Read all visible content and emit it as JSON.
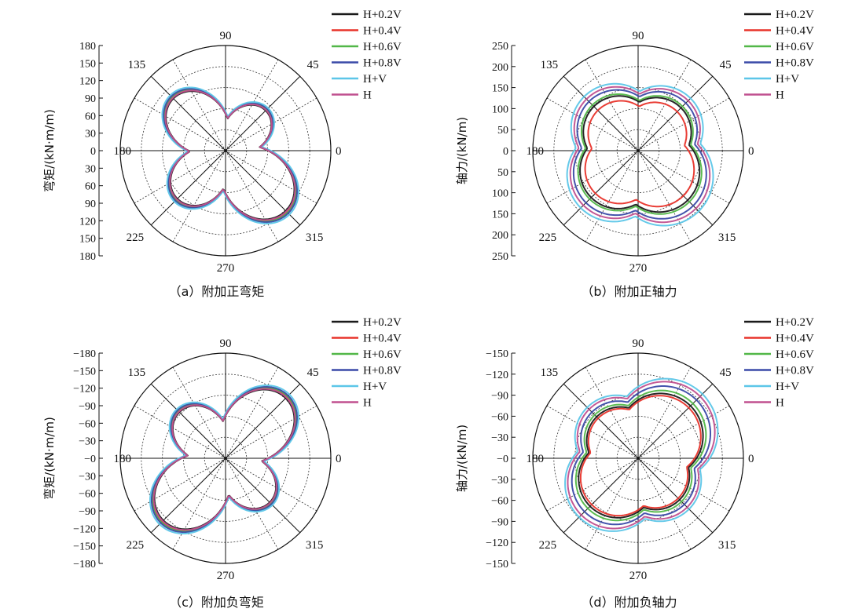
{
  "colors": {
    "H+0.2V": "#1a1a1a",
    "H+0.4V": "#e8332a",
    "H+0.6V": "#52b748",
    "H+0.8V": "#3a4aa8",
    "H+V": "#5cc6e8",
    "H": "#c0508f"
  },
  "chart_data": [
    {
      "type": "polar-line",
      "id": "a",
      "caption": "（a）附加正弯矩",
      "ylabel": "弯矩/(kN·m/m)",
      "r_max": 180,
      "radial_ticks_top": [
        "180",
        "150",
        "120",
        "90",
        "60",
        "30",
        "0"
      ],
      "radial_ticks_bottom": [
        "30",
        "60",
        "90",
        "120",
        "150",
        "180"
      ],
      "angle_labels": [
        "90",
        "45",
        "0",
        "315",
        "270",
        "225",
        "180",
        "135"
      ],
      "lobes": [
        {
          "angle": 45,
          "peak": 100,
          "width": 1.0
        },
        {
          "angle": 135,
          "peak": 130,
          "width": 1.0
        },
        {
          "angle": 225,
          "peak": 120,
          "width": 1.0
        },
        {
          "angle": 315,
          "peak": 150,
          "width": 1.0
        }
      ],
      "series": [
        {
          "name": "H+0.2V",
          "scale": 0.97
        },
        {
          "name": "H+0.4V",
          "scale": 0.99
        },
        {
          "name": "H+0.6V",
          "scale": 1.0
        },
        {
          "name": "H+0.8V",
          "scale": 1.01
        },
        {
          "name": "H+V",
          "scale": 1.03
        },
        {
          "name": "H",
          "scale": 0.98
        }
      ]
    },
    {
      "type": "polar-line",
      "id": "b",
      "caption": "（b）附加正轴力",
      "ylabel": "轴力/(kN/m)",
      "r_max": 250,
      "radial_ticks_top": [
        "250",
        "200",
        "150",
        "100",
        "50",
        "0"
      ],
      "radial_ticks_bottom": [
        "50",
        "100",
        "150",
        "200",
        "250"
      ],
      "angle_labels": [
        "90",
        "45",
        "0",
        "315",
        "270",
        "225",
        "180",
        "135"
      ],
      "lobes": [
        {
          "angle": 45,
          "peak": 160,
          "width": 1.4
        },
        {
          "angle": 135,
          "peak": 165,
          "width": 1.4
        },
        {
          "angle": 225,
          "peak": 175,
          "width": 1.4
        },
        {
          "angle": 315,
          "peak": 185,
          "width": 1.4
        }
      ],
      "series": [
        {
          "name": "H+0.2V",
          "scale": 0.9,
          "floor": 0.25
        },
        {
          "name": "H+0.4V",
          "scale": 0.82,
          "floor": 0.3
        },
        {
          "name": "H+0.6V",
          "scale": 0.93,
          "floor": 0.38
        },
        {
          "name": "H+0.8V",
          "scale": 1.0,
          "floor": 0.45
        },
        {
          "name": "H+V",
          "scale": 1.1,
          "floor": 0.62
        },
        {
          "name": "H",
          "scale": 1.05,
          "floor": 0.2
        }
      ]
    },
    {
      "type": "polar-line",
      "id": "c",
      "caption": "（c）附加负弯矩",
      "ylabel": "弯矩/(kN·m/m)",
      "r_max": 180,
      "radial_ticks_top": [
        "−180",
        "−150",
        "−120",
        "−90",
        "−60",
        "−30",
        "−0"
      ],
      "radial_ticks_bottom": [
        "−30",
        "−60",
        "−90",
        "−120",
        "−150",
        "−180"
      ],
      "angle_labels": [
        "90",
        "45",
        "0",
        "315",
        "270",
        "225",
        "180",
        "135"
      ],
      "lobes": [
        {
          "angle": 45,
          "peak": 150,
          "width": 1.0
        },
        {
          "angle": 135,
          "peak": 115,
          "width": 1.0
        },
        {
          "angle": 225,
          "peak": 155,
          "width": 1.0
        },
        {
          "angle": 315,
          "peak": 110,
          "width": 1.0
        }
      ],
      "series": [
        {
          "name": "H+0.2V",
          "scale": 0.97
        },
        {
          "name": "H+0.4V",
          "scale": 0.99
        },
        {
          "name": "H+0.6V",
          "scale": 1.0
        },
        {
          "name": "H+0.8V",
          "scale": 1.01
        },
        {
          "name": "H+V",
          "scale": 1.03
        },
        {
          "name": "H",
          "scale": 0.98
        }
      ]
    },
    {
      "type": "polar-line",
      "id": "d",
      "caption": "（d）附加负轴力",
      "ylabel": "轴力/(kN/m)",
      "r_max": 150,
      "radial_ticks_top": [
        "−150",
        "−120",
        "−90",
        "−60",
        "−30",
        "−0"
      ],
      "radial_ticks_bottom": [
        "−30",
        "−60",
        "−90",
        "−120",
        "−150"
      ],
      "angle_labels": [
        "90",
        "45",
        "0",
        "315",
        "270",
        "225",
        "180",
        "135"
      ],
      "lobes": [
        {
          "angle": 45,
          "peak": 120,
          "width": 1.4
        },
        {
          "angle": 135,
          "peak": 95,
          "width": 1.4
        },
        {
          "angle": 225,
          "peak": 110,
          "width": 1.4
        },
        {
          "angle": 315,
          "peak": 95,
          "width": 1.4
        }
      ],
      "series": [
        {
          "name": "H+0.2V",
          "scale": 0.88,
          "floor": 0.22
        },
        {
          "name": "H+0.4V",
          "scale": 0.85,
          "floor": 0.28
        },
        {
          "name": "H+0.6V",
          "scale": 0.92,
          "floor": 0.36
        },
        {
          "name": "H+0.8V",
          "scale": 0.98,
          "floor": 0.42
        },
        {
          "name": "H+V",
          "scale": 1.08,
          "floor": 0.58
        },
        {
          "name": "H",
          "scale": 1.04,
          "floor": 0.2
        }
      ]
    }
  ],
  "legend": [
    "H+0.2V",
    "H+0.4V",
    "H+0.6V",
    "H+0.8V",
    "H+V",
    "H"
  ]
}
